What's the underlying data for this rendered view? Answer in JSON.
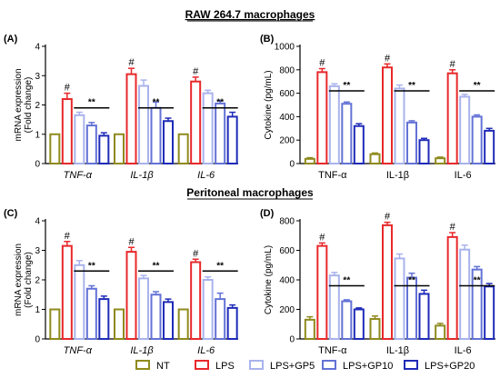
{
  "section_titles": [
    "RAW 264.7 macrophages",
    "Peritoneal macrophages"
  ],
  "colors": {
    "NT": "#8f8a1c",
    "LPS": "#e8282b",
    "LPS+GP5": "#a9b3ec",
    "LPS+GP10": "#6372d6",
    "LPS+GP20": "#1f2bb8"
  },
  "legend": [
    "NT",
    "LPS",
    "LPS+GP5",
    "LPS+GP10",
    "LPS+GP20"
  ],
  "chart_data": [
    {
      "type": "bar",
      "panel_label": "(A)",
      "ylabel_lines": [
        "mRNA expression",
        "(Fold change)"
      ],
      "ylim": [
        0,
        4
      ],
      "yticks": [
        "0",
        "1",
        "2",
        "3",
        "4"
      ],
      "categories": [
        "TNF-α",
        "IL-1β",
        "IL-6"
      ],
      "category_style": "italic",
      "series": [
        {
          "name": "NT",
          "values": [
            1,
            1,
            1
          ],
          "errors": [
            0,
            0,
            0
          ]
        },
        {
          "name": "LPS",
          "values": [
            2.2,
            3.05,
            2.8
          ],
          "errors": [
            0.2,
            0.2,
            0.15
          ]
        },
        {
          "name": "LPS+GP5",
          "values": [
            1.65,
            2.65,
            2.4
          ],
          "errors": [
            0.1,
            0.2,
            0.1
          ]
        },
        {
          "name": "LPS+GP10",
          "values": [
            1.3,
            1.9,
            2.05
          ],
          "errors": [
            0.1,
            0.2,
            0.1
          ]
        },
        {
          "name": "LPS+GP20",
          "values": [
            0.95,
            1.45,
            1.6
          ],
          "errors": [
            0.1,
            0.1,
            0.15
          ]
        }
      ],
      "hash_label": "#",
      "sig_label": "**",
      "sig_y": 1.9
    },
    {
      "type": "bar",
      "panel_label": "(B)",
      "ylabel_lines": [
        "Cytokine (pg/mL)"
      ],
      "ylim": [
        0,
        1000
      ],
      "yticks": [
        "0",
        "200",
        "400",
        "600",
        "800",
        "1000"
      ],
      "categories": [
        "TNF-α",
        "IL-1β",
        "IL-6"
      ],
      "category_style": "normal",
      "series": [
        {
          "name": "NT",
          "values": [
            40,
            80,
            45
          ],
          "errors": [
            10,
            10,
            10
          ]
        },
        {
          "name": "LPS",
          "values": [
            780,
            820,
            770
          ],
          "errors": [
            30,
            30,
            30
          ]
        },
        {
          "name": "LPS+GP5",
          "values": [
            660,
            640,
            570
          ],
          "errors": [
            20,
            30,
            20
          ]
        },
        {
          "name": "LPS+GP10",
          "values": [
            510,
            350,
            400
          ],
          "errors": [
            15,
            15,
            15
          ]
        },
        {
          "name": "LPS+GP20",
          "values": [
            320,
            200,
            280
          ],
          "errors": [
            20,
            15,
            20
          ]
        }
      ],
      "hash_label": "#",
      "sig_label": "**",
      "sig_y": 620
    },
    {
      "type": "bar",
      "panel_label": "(C)",
      "ylabel_lines": [
        "mRNA expression",
        "(Fold change)"
      ],
      "ylim": [
        0,
        4
      ],
      "yticks": [
        "0",
        "1",
        "2",
        "3",
        "4"
      ],
      "categories": [
        "TNF-α",
        "IL-1β",
        "IL-6"
      ],
      "category_style": "italic",
      "series": [
        {
          "name": "NT",
          "values": [
            1,
            1,
            1
          ],
          "errors": [
            0,
            0,
            0
          ]
        },
        {
          "name": "LPS",
          "values": [
            3.15,
            2.95,
            2.6
          ],
          "errors": [
            0.15,
            0.15,
            0.1
          ]
        },
        {
          "name": "LPS+GP5",
          "values": [
            2.5,
            2.05,
            2.0
          ],
          "errors": [
            0.15,
            0.1,
            0.1
          ]
        },
        {
          "name": "LPS+GP10",
          "values": [
            1.7,
            1.5,
            1.35
          ],
          "errors": [
            0.1,
            0.1,
            0.2
          ]
        },
        {
          "name": "LPS+GP20",
          "values": [
            1.35,
            1.25,
            1.05
          ],
          "errors": [
            0.1,
            0.1,
            0.1
          ]
        }
      ],
      "hash_label": "#",
      "sig_label": "**",
      "sig_y": 2.3
    },
    {
      "type": "bar",
      "panel_label": "(D)",
      "ylabel_lines": [
        "Cytokine (pg/mL)"
      ],
      "ylim": [
        0,
        800
      ],
      "yticks": [
        "0",
        "200",
        "400",
        "600",
        "800"
      ],
      "categories": [
        "TNF-α",
        "IL-1β",
        "IL-6"
      ],
      "category_style": "normal",
      "series": [
        {
          "name": "NT",
          "values": [
            130,
            135,
            90
          ],
          "errors": [
            20,
            20,
            15
          ]
        },
        {
          "name": "LPS",
          "values": [
            630,
            770,
            690
          ],
          "errors": [
            20,
            20,
            30
          ]
        },
        {
          "name": "LPS+GP5",
          "values": [
            430,
            545,
            605
          ],
          "errors": [
            20,
            30,
            30
          ]
        },
        {
          "name": "LPS+GP10",
          "values": [
            255,
            415,
            470
          ],
          "errors": [
            10,
            30,
            20
          ]
        },
        {
          "name": "LPS+GP20",
          "values": [
            200,
            305,
            355
          ],
          "errors": [
            10,
            25,
            20
          ]
        }
      ],
      "hash_label": "#",
      "sig_label": "**",
      "sig_y": 360
    }
  ]
}
